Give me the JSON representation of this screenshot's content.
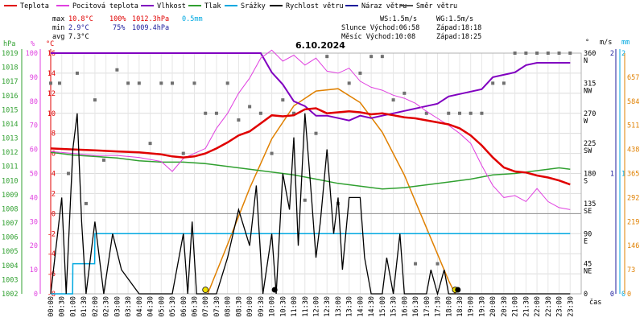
{
  "chart_data": {
    "type": "line",
    "title": "6.10.2024",
    "legend": [
      {
        "key": "temp",
        "label": "Teplota",
        "color": "#e00000"
      },
      {
        "key": "feels",
        "label": "Pocitová teplota",
        "color": "#e040e0"
      },
      {
        "key": "hum",
        "label": "Vlhkost",
        "color": "#8000c0"
      },
      {
        "key": "press",
        "label": "Tlak",
        "color": "#30a030"
      },
      {
        "key": "rain",
        "label": "Srážky",
        "color": "#00a8e0"
      },
      {
        "key": "wind",
        "label": "Rychlost větru",
        "color": "#000000"
      },
      {
        "key": "gust",
        "label": "Náraz větru",
        "color": "#1c1c9c"
      },
      {
        "key": "dir",
        "label": "Směr větru",
        "color": "#505050"
      }
    ],
    "stats": {
      "max": {
        "label": "max",
        "temp": "10.8°C",
        "hum": "100%",
        "press": "1012.3hPa",
        "rain": "0.5mm"
      },
      "min": {
        "label": "min",
        "temp": "2.9°C",
        "hum": "75%",
        "press": "1009.4hPa"
      },
      "avg": {
        "label": "avg",
        "temp": "7.3°C"
      }
    },
    "info": {
      "ws": "WS:1.5m/s",
      "wg": "WG:1.5m/s",
      "sun_rise": "Slunce Východ:06:58",
      "sun_set": "Západ:18:18",
      "moon_rise": "Měsíc  Východ:10:08",
      "moon_set": "Západ:18:25"
    },
    "axes": {
      "hpa": {
        "label": "hPa",
        "ticks": [
          "1019",
          "1018",
          "1017",
          "1016",
          "1015",
          "1014",
          "1013",
          "1012",
          "1011",
          "1010",
          "1009",
          "1008",
          "1007",
          "1006",
          "1005",
          "1004",
          "1003",
          "1002"
        ]
      },
      "pct": {
        "label": "%",
        "ticks": [
          "100",
          "90",
          "80",
          "70",
          "60",
          "50",
          "40",
          "30",
          "20",
          "10",
          "0"
        ]
      },
      "degc": {
        "label": "°C",
        "ticks": [
          "16",
          "14",
          "12",
          "10",
          "8",
          "6",
          "4",
          "2",
          "0",
          "-2",
          "-4",
          "-6",
          "-8"
        ]
      },
      "dir": {
        "label": "°",
        "ticks": [
          {
            "deg": "360",
            "name": "N"
          },
          {
            "deg": "315",
            "name": "NW"
          },
          {
            "deg": "270",
            "name": "W"
          },
          {
            "deg": "225",
            "name": "SW"
          },
          {
            "deg": "180",
            "name": "S"
          },
          {
            "deg": "135",
            "name": "SE"
          },
          {
            "deg": "90",
            "name": "E"
          },
          {
            "deg": "45",
            "name": "NE"
          },
          {
            "deg": "0",
            "name": ""
          }
        ]
      },
      "ms": {
        "label": "m/s",
        "ticks": [
          "2",
          "1",
          "0"
        ]
      },
      "mm": {
        "label": "mm",
        "ticks": [
          "2",
          "1",
          "0"
        ]
      },
      "sun": {
        "ticks": [
          "657",
          "584",
          "511",
          "438",
          "365",
          "292",
          "219",
          "146",
          "73",
          "0"
        ]
      },
      "x": {
        "label": "čas",
        "ticks": [
          "00:00",
          "00:30",
          "01:00",
          "01:30",
          "02:00",
          "02:30",
          "03:00",
          "03:30",
          "04:00",
          "04:30",
          "05:00",
          "05:30",
          "06:00",
          "06:30",
          "07:00",
          "07:30",
          "08:00",
          "08:30",
          "09:00",
          "09:30",
          "10:00",
          "10:30",
          "11:00",
          "11:30",
          "12:00",
          "12:30",
          "13:00",
          "13:30",
          "14:00",
          "14:30",
          "15:00",
          "15:30",
          "16:00",
          "16:30",
          "17:00",
          "17:30",
          "18:00",
          "18:30",
          "19:00",
          "19:30",
          "20:00",
          "20:30",
          "21:00",
          "21:30",
          "22:00",
          "22:30",
          "23:00",
          "23:30"
        ]
      }
    },
    "series": {
      "temp_c": [
        [
          0,
          6.5
        ],
        [
          1,
          6.4
        ],
        [
          2,
          6.3
        ],
        [
          3,
          6.2
        ],
        [
          4,
          6.1
        ],
        [
          5,
          5.9
        ],
        [
          5.5,
          5.7
        ],
        [
          6,
          5.6
        ],
        [
          6.5,
          5.7
        ],
        [
          7,
          6.0
        ],
        [
          7.5,
          6.5
        ],
        [
          8,
          7.1
        ],
        [
          8.5,
          7.8
        ],
        [
          9,
          8.2
        ],
        [
          9.5,
          9.0
        ],
        [
          10,
          9.8
        ],
        [
          10.5,
          9.7
        ],
        [
          11,
          9.8
        ],
        [
          11.5,
          10.4
        ],
        [
          12,
          10.5
        ],
        [
          12.5,
          10.0
        ],
        [
          13,
          10.1
        ],
        [
          13.5,
          10.2
        ],
        [
          14,
          10.1
        ],
        [
          14.5,
          9.9
        ],
        [
          15,
          10.0
        ],
        [
          15.5,
          9.8
        ],
        [
          16,
          9.6
        ],
        [
          16.5,
          9.5
        ],
        [
          17,
          9.3
        ],
        [
          17.5,
          9.1
        ],
        [
          18,
          8.9
        ],
        [
          18.5,
          8.5
        ],
        [
          19,
          7.8
        ],
        [
          19.5,
          6.8
        ],
        [
          20,
          5.6
        ],
        [
          20.5,
          4.6
        ],
        [
          21,
          4.2
        ],
        [
          21.5,
          4.1
        ],
        [
          22,
          3.8
        ],
        [
          22.5,
          3.6
        ],
        [
          23,
          3.3
        ],
        [
          23.5,
          2.9
        ]
      ],
      "feels_c": [
        [
          0,
          6.2
        ],
        [
          1,
          6.0
        ],
        [
          2,
          5.8
        ],
        [
          3,
          5.8
        ],
        [
          4,
          5.6
        ],
        [
          5,
          5.2
        ],
        [
          5.5,
          4.2
        ],
        [
          6,
          5.5
        ],
        [
          6.5,
          6.0
        ],
        [
          7,
          6.5
        ],
        [
          7.5,
          8.5
        ],
        [
          8,
          10.0
        ],
        [
          8.5,
          12.0
        ],
        [
          9,
          13.5
        ],
        [
          9.5,
          15.5
        ],
        [
          10,
          16.3
        ],
        [
          10.5,
          15.2
        ],
        [
          11,
          15.8
        ],
        [
          11.5,
          14.8
        ],
        [
          12,
          15.5
        ],
        [
          12.5,
          14.2
        ],
        [
          13,
          14.0
        ],
        [
          13.5,
          14.5
        ],
        [
          14,
          13.2
        ],
        [
          14.5,
          12.6
        ],
        [
          15,
          12.3
        ],
        [
          15.5,
          11.8
        ],
        [
          16,
          11.5
        ],
        [
          16.5,
          11.0
        ],
        [
          17,
          10.2
        ],
        [
          17.5,
          9.5
        ],
        [
          18,
          8.8
        ],
        [
          18.5,
          8.0
        ],
        [
          19,
          7.0
        ],
        [
          19.5,
          4.8
        ],
        [
          20,
          2.8
        ],
        [
          20.5,
          1.6
        ],
        [
          21,
          1.8
        ],
        [
          21.5,
          1.2
        ],
        [
          22,
          2.5
        ],
        [
          22.5,
          1.2
        ],
        [
          23,
          0.6
        ],
        [
          23.5,
          0.4
        ]
      ],
      "hum_pct": [
        [
          0,
          100
        ],
        [
          9.5,
          100
        ],
        [
          10,
          92
        ],
        [
          10.5,
          87
        ],
        [
          11,
          80
        ],
        [
          11.5,
          78
        ],
        [
          12,
          74
        ],
        [
          12.5,
          74
        ],
        [
          13,
          73
        ],
        [
          13.5,
          72
        ],
        [
          14,
          74
        ],
        [
          14.5,
          73
        ],
        [
          15,
          74
        ],
        [
          15.5,
          75
        ],
        [
          16,
          76
        ],
        [
          16.5,
          77
        ],
        [
          17,
          78
        ],
        [
          17.5,
          79
        ],
        [
          18,
          82
        ],
        [
          18.5,
          83
        ],
        [
          19,
          84
        ],
        [
          19.5,
          85
        ],
        [
          20,
          90
        ],
        [
          20.5,
          91
        ],
        [
          21,
          92
        ],
        [
          21.5,
          95
        ],
        [
          22,
          96
        ],
        [
          22.5,
          96
        ],
        [
          23,
          96
        ],
        [
          23.5,
          96
        ]
      ],
      "press_hpa": [
        [
          0,
          1012.0
        ],
        [
          1,
          1011.8
        ],
        [
          2,
          1011.7
        ],
        [
          3,
          1011.6
        ],
        [
          4,
          1011.4
        ],
        [
          5,
          1011.3
        ],
        [
          6,
          1011.3
        ],
        [
          7,
          1011.2
        ],
        [
          8,
          1011.0
        ],
        [
          9,
          1010.8
        ],
        [
          10,
          1010.6
        ],
        [
          11,
          1010.4
        ],
        [
          12,
          1010.1
        ],
        [
          13,
          1009.8
        ],
        [
          14,
          1009.6
        ],
        [
          15,
          1009.4
        ],
        [
          16,
          1009.5
        ],
        [
          17,
          1009.7
        ],
        [
          18,
          1009.9
        ],
        [
          19,
          1010.1
        ],
        [
          20,
          1010.4
        ],
        [
          21,
          1010.5
        ],
        [
          22,
          1010.7
        ],
        [
          23,
          1010.9
        ],
        [
          23.5,
          1010.8
        ]
      ],
      "rain_mm": [
        [
          0,
          0.0
        ],
        [
          0.99,
          0.0
        ],
        [
          1,
          0.25
        ],
        [
          1.99,
          0.25
        ],
        [
          2,
          0.5
        ],
        [
          23.5,
          0.5
        ]
      ],
      "wind_ms": [
        [
          0,
          0
        ],
        [
          0.5,
          0.8
        ],
        [
          0.7,
          0
        ],
        [
          1.0,
          1.2
        ],
        [
          1.2,
          1.5
        ],
        [
          1.4,
          0.6
        ],
        [
          1.6,
          0
        ],
        [
          2.0,
          0.6
        ],
        [
          2.4,
          0
        ],
        [
          2.8,
          0.5
        ],
        [
          3.2,
          0.2
        ],
        [
          4.0,
          0
        ],
        [
          5.5,
          0
        ],
        [
          6.0,
          0.5
        ],
        [
          6.2,
          0
        ],
        [
          6.4,
          0.6
        ],
        [
          6.6,
          0
        ],
        [
          7.0,
          0
        ],
        [
          7.5,
          0
        ],
        [
          8.0,
          0.3
        ],
        [
          8.5,
          0.7
        ],
        [
          9.0,
          0.4
        ],
        [
          9.3,
          0.9
        ],
        [
          9.6,
          0
        ],
        [
          10.0,
          0.5
        ],
        [
          10.2,
          0
        ],
        [
          10.5,
          1.0
        ],
        [
          10.8,
          0.7
        ],
        [
          11.0,
          1.3
        ],
        [
          11.2,
          0.4
        ],
        [
          11.5,
          1.5
        ],
        [
          11.8,
          0.8
        ],
        [
          12.0,
          0.3
        ],
        [
          12.2,
          0.6
        ],
        [
          12.5,
          1.2
        ],
        [
          12.8,
          0.5
        ],
        [
          13.0,
          0.8
        ],
        [
          13.2,
          0.2
        ],
        [
          13.5,
          0.8
        ],
        [
          14.0,
          0.8
        ],
        [
          14.2,
          0.3
        ],
        [
          14.5,
          0
        ],
        [
          15.0,
          0
        ],
        [
          15.2,
          0.3
        ],
        [
          15.5,
          0
        ],
        [
          15.8,
          0.5
        ],
        [
          16.0,
          0
        ],
        [
          16.5,
          0
        ],
        [
          17.0,
          0
        ],
        [
          17.2,
          0.2
        ],
        [
          17.5,
          0
        ],
        [
          17.8,
          0.2
        ],
        [
          18.0,
          0
        ],
        [
          23.5,
          0
        ]
      ],
      "dir_points": [
        [
          0,
          315
        ],
        [
          0.4,
          315
        ],
        [
          0.8,
          180
        ],
        [
          1.2,
          330
        ],
        [
          1.6,
          135
        ],
        [
          2.0,
          290
        ],
        [
          2.4,
          200
        ],
        [
          3.0,
          335
        ],
        [
          3.5,
          315
        ],
        [
          4.0,
          315
        ],
        [
          4.5,
          225
        ],
        [
          5.0,
          315
        ],
        [
          5.5,
          315
        ],
        [
          6.0,
          210
        ],
        [
          6.5,
          315
        ],
        [
          7.0,
          270
        ],
        [
          7.5,
          270
        ],
        [
          8.0,
          315
        ],
        [
          8.5,
          260
        ],
        [
          9.0,
          280
        ],
        [
          9.5,
          270
        ],
        [
          10.0,
          210
        ],
        [
          10.5,
          290
        ],
        [
          11.0,
          270
        ],
        [
          11.5,
          140
        ],
        [
          12.0,
          240
        ],
        [
          12.5,
          355
        ],
        [
          13.0,
          135
        ],
        [
          13.5,
          315
        ],
        [
          14.0,
          330
        ],
        [
          14.5,
          355
        ],
        [
          15.0,
          355
        ],
        [
          15.5,
          290
        ],
        [
          16.0,
          300
        ],
        [
          16.5,
          45
        ],
        [
          17.0,
          270
        ],
        [
          17.5,
          45
        ],
        [
          18.0,
          270
        ],
        [
          18.5,
          270
        ],
        [
          19.0,
          270
        ],
        [
          19.5,
          270
        ],
        [
          20.0,
          315
        ],
        [
          20.5,
          315
        ],
        [
          21.0,
          360
        ],
        [
          21.5,
          360
        ],
        [
          22.0,
          360
        ],
        [
          22.5,
          360
        ],
        [
          23.0,
          360
        ],
        [
          23.5,
          360
        ]
      ],
      "sun_wm2": [
        [
          7.1,
          0
        ],
        [
          8,
          150
        ],
        [
          9,
          320
        ],
        [
          10,
          470
        ],
        [
          11,
          570
        ],
        [
          12,
          615
        ],
        [
          13,
          622
        ],
        [
          14,
          580
        ],
        [
          15,
          490
        ],
        [
          16,
          360
        ],
        [
          17,
          200
        ],
        [
          18,
          40
        ],
        [
          18.3,
          0
        ]
      ]
    },
    "markers": {
      "sunrise_h": 7.0,
      "sunset_h": 18.3,
      "moonrise_h": 10.13,
      "moonset_h": 18.42
    }
  }
}
